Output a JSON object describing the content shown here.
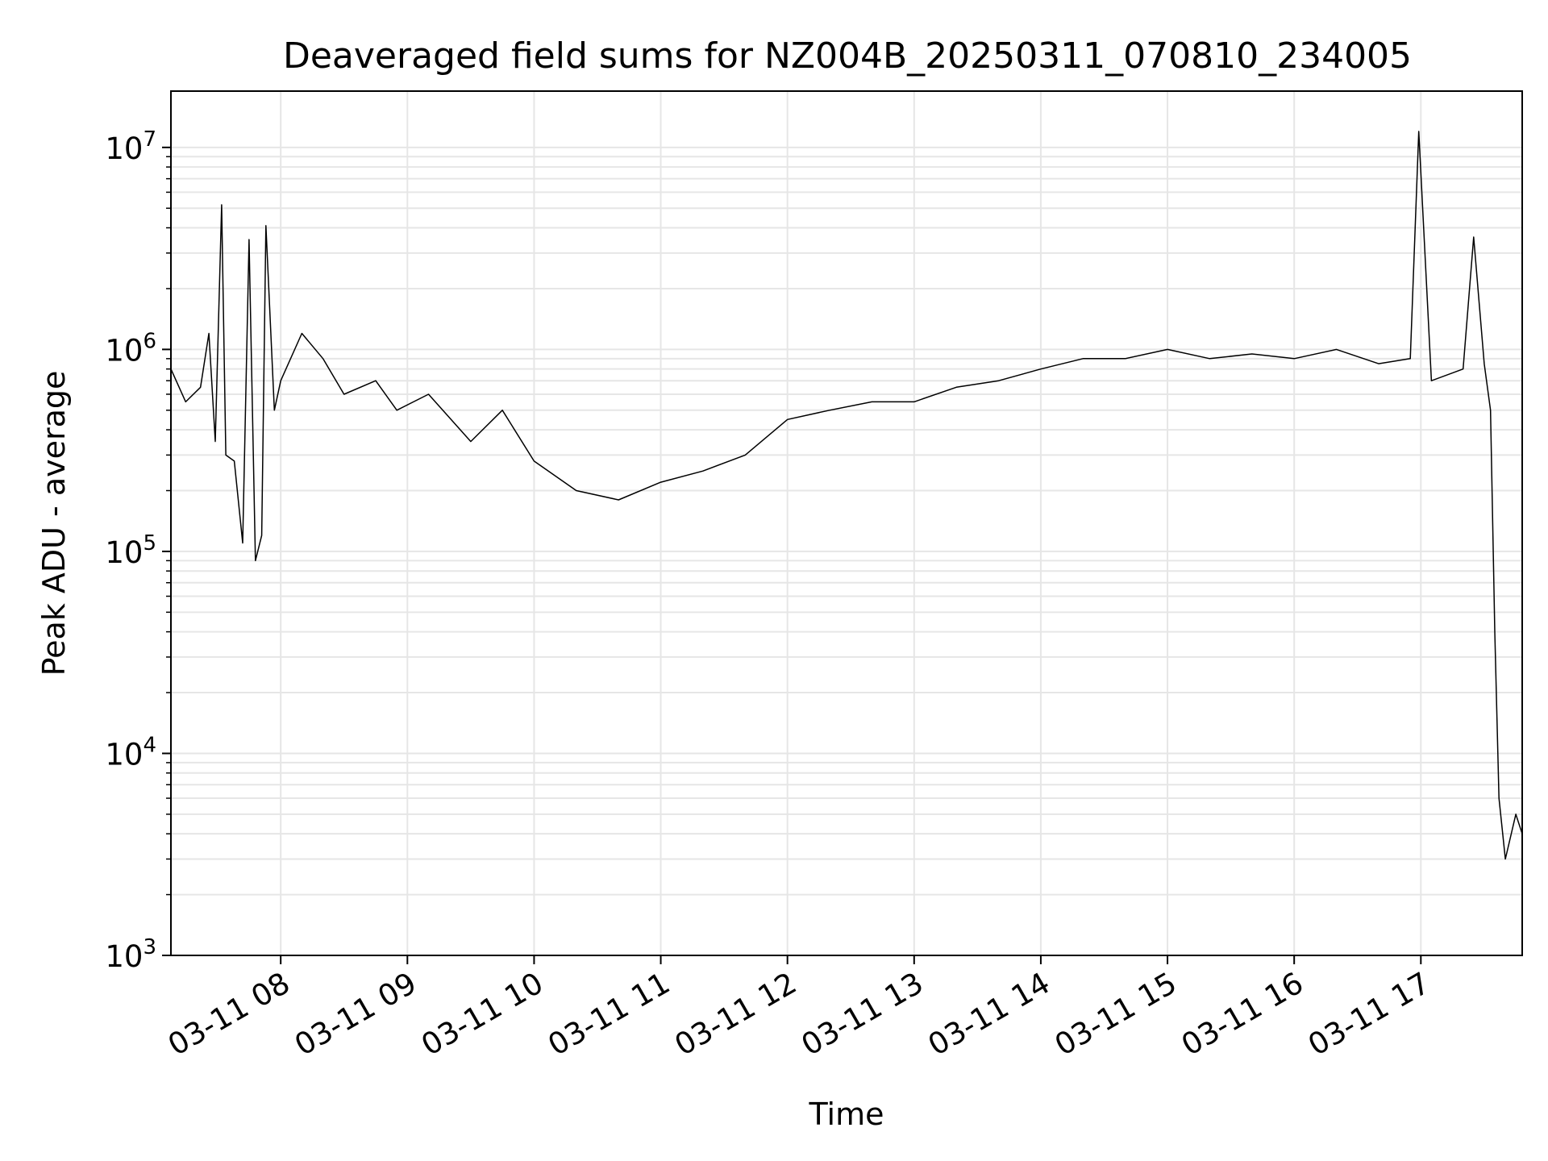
{
  "chart_data": {
    "type": "line",
    "title": "Deaveraged field sums for NZ004B_20250311_070810_234005",
    "xlabel": "Time",
    "ylabel": "Peak ADU - average",
    "yscale": "log",
    "ylim": [
      1000,
      19000000
    ],
    "xlim": [
      "2025-03-11 07:08",
      "2025-03-11 17:48"
    ],
    "grid": true,
    "line_color": "#000000",
    "grid_color": "#e6e6e6",
    "x_ticks": [
      {
        "value": "2025-03-11 08:00",
        "label": "03-11 08"
      },
      {
        "value": "2025-03-11 09:00",
        "label": "03-11 09"
      },
      {
        "value": "2025-03-11 10:00",
        "label": "03-11 10"
      },
      {
        "value": "2025-03-11 11:00",
        "label": "03-11 11"
      },
      {
        "value": "2025-03-11 12:00",
        "label": "03-11 12"
      },
      {
        "value": "2025-03-11 13:00",
        "label": "03-11 13"
      },
      {
        "value": "2025-03-11 14:00",
        "label": "03-11 14"
      },
      {
        "value": "2025-03-11 15:00",
        "label": "03-11 15"
      },
      {
        "value": "2025-03-11 16:00",
        "label": "03-11 16"
      },
      {
        "value": "2025-03-11 17:00",
        "label": "03-11 17"
      }
    ],
    "y_ticks": [
      {
        "value": 1000,
        "label": "10",
        "exp": "3"
      },
      {
        "value": 10000,
        "label": "10",
        "exp": "4"
      },
      {
        "value": 100000,
        "label": "10",
        "exp": "5"
      },
      {
        "value": 1000000,
        "label": "10",
        "exp": "6"
      },
      {
        "value": 10000000,
        "label": "10",
        "exp": "7"
      }
    ],
    "series": [
      {
        "x": [
          "2025-03-11 07:08",
          "2025-03-11 07:15",
          "2025-03-11 07:22",
          "2025-03-11 07:26",
          "2025-03-11 07:29",
          "2025-03-11 07:32",
          "2025-03-11 07:34",
          "2025-03-11 07:38",
          "2025-03-11 07:42",
          "2025-03-11 07:45",
          "2025-03-11 07:48",
          "2025-03-11 07:51",
          "2025-03-11 07:53",
          "2025-03-11 07:57",
          "2025-03-11 08:00",
          "2025-03-11 08:10",
          "2025-03-11 08:20",
          "2025-03-11 08:30",
          "2025-03-11 08:45",
          "2025-03-11 08:55",
          "2025-03-11 09:10",
          "2025-03-11 09:30",
          "2025-03-11 09:45",
          "2025-03-11 10:00",
          "2025-03-11 10:20",
          "2025-03-11 10:40",
          "2025-03-11 11:00",
          "2025-03-11 11:20",
          "2025-03-11 11:40",
          "2025-03-11 12:00",
          "2025-03-11 12:20",
          "2025-03-11 12:40",
          "2025-03-11 13:00",
          "2025-03-11 13:20",
          "2025-03-11 13:40",
          "2025-03-11 14:00",
          "2025-03-11 14:20",
          "2025-03-11 14:40",
          "2025-03-11 15:00",
          "2025-03-11 15:20",
          "2025-03-11 15:40",
          "2025-03-11 16:00",
          "2025-03-11 16:20",
          "2025-03-11 16:40",
          "2025-03-11 16:55",
          "2025-03-11 16:59",
          "2025-03-11 17:05",
          "2025-03-11 17:20",
          "2025-03-11 17:25",
          "2025-03-11 17:30",
          "2025-03-11 17:33",
          "2025-03-11 17:35",
          "2025-03-11 17:37",
          "2025-03-11 17:40",
          "2025-03-11 17:45",
          "2025-03-11 17:48"
        ],
        "y": [
          800000,
          550000,
          650000,
          1200000,
          350000,
          5200000,
          300000,
          280000,
          110000,
          3500000,
          90000,
          120000,
          4100000,
          500000,
          700000,
          1200000,
          900000,
          600000,
          700000,
          500000,
          600000,
          350000,
          500000,
          280000,
          200000,
          180000,
          220000,
          250000,
          300000,
          450000,
          500000,
          550000,
          550000,
          650000,
          700000,
          800000,
          900000,
          900000,
          1000000,
          900000,
          950000,
          900000,
          1000000,
          850000,
          900000,
          12000000,
          700000,
          800000,
          3600000,
          850000,
          500000,
          40000,
          6000,
          3000,
          5000,
          4000
        ]
      }
    ]
  }
}
